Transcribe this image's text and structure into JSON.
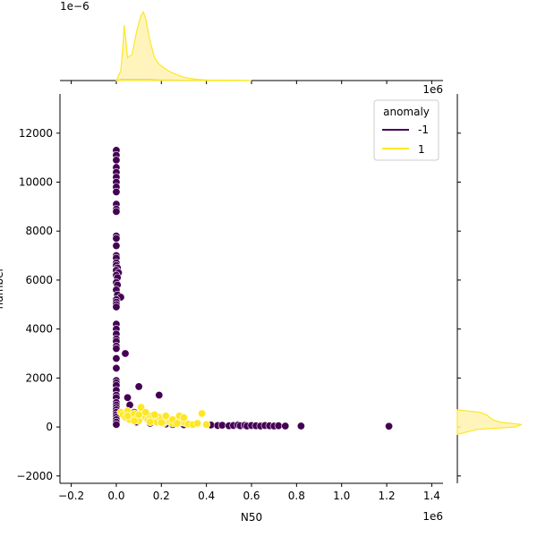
{
  "chart_data": {
    "type": "scatter",
    "xlabel": "N50",
    "ylabel": "number",
    "x_offset_label": "1e6",
    "top_marginal_offset_label": "1e−6",
    "right_marginal_offset_label": "1e6",
    "xlim": [
      -0.25,
      1.45
    ],
    "ylim": [
      -2300,
      13600
    ],
    "x_ticks": [
      -0.2,
      0.0,
      0.2,
      0.4,
      0.6,
      0.8,
      1.0,
      1.2,
      1.4
    ],
    "y_ticks": [
      -2000,
      0,
      2000,
      4000,
      6000,
      8000,
      10000,
      12000
    ],
    "legend": {
      "title": "anomaly",
      "placement": "upper right",
      "entries": [
        {
          "label": "-1",
          "color": "#440154"
        },
        {
          "label": "1",
          "color": "#fde725"
        }
      ]
    },
    "colors": {
      "anomaly_neg": "#440154",
      "anomaly_pos": "#fde725",
      "kde_fill": "#fff3b0",
      "kde_line": "#fde725"
    },
    "series": [
      {
        "name": "-1",
        "color": "#440154",
        "points": [
          [
            0.0,
            11300
          ],
          [
            0.0,
            11100
          ],
          [
            0.0,
            10900
          ],
          [
            0.0,
            10600
          ],
          [
            0.0,
            10400
          ],
          [
            0.0,
            10200
          ],
          [
            0.0,
            10000
          ],
          [
            0.0,
            9800
          ],
          [
            0.0,
            9600
          ],
          [
            0.0,
            9100
          ],
          [
            0.0,
            8900
          ],
          [
            0.0,
            8800
          ],
          [
            0.0,
            7800
          ],
          [
            0.0,
            7700
          ],
          [
            0.0,
            7400
          ],
          [
            0.0,
            7000
          ],
          [
            0.0,
            6900
          ],
          [
            0.0,
            6700
          ],
          [
            0.0,
            6600
          ],
          [
            0.005,
            6500
          ],
          [
            0.0,
            6400
          ],
          [
            0.01,
            6300
          ],
          [
            0.0,
            6200
          ],
          [
            0.005,
            6100
          ],
          [
            0.0,
            5900
          ],
          [
            0.005,
            5800
          ],
          [
            0.0,
            5600
          ],
          [
            0.005,
            5400
          ],
          [
            0.02,
            5300
          ],
          [
            0.0,
            5200
          ],
          [
            0.0,
            5100
          ],
          [
            0.0,
            5000
          ],
          [
            0.0,
            4900
          ],
          [
            0.0,
            4200
          ],
          [
            0.0,
            4000
          ],
          [
            0.0,
            3800
          ],
          [
            0.0,
            3600
          ],
          [
            0.0,
            3500
          ],
          [
            0.0,
            3300
          ],
          [
            0.0,
            3200
          ],
          [
            0.04,
            3000
          ],
          [
            0.0,
            2800
          ],
          [
            0.0,
            2400
          ],
          [
            0.0,
            1900
          ],
          [
            0.0,
            1800
          ],
          [
            0.0,
            1700
          ],
          [
            0.0,
            1500
          ],
          [
            0.0,
            1300
          ],
          [
            0.0,
            1200
          ],
          [
            0.0,
            1000
          ],
          [
            0.0,
            900
          ],
          [
            0.0,
            800
          ],
          [
            0.0,
            700
          ],
          [
            0.0,
            600
          ],
          [
            0.0,
            500
          ],
          [
            0.0,
            400
          ],
          [
            0.0,
            300
          ],
          [
            0.0,
            200
          ],
          [
            0.0,
            100
          ],
          [
            0.05,
            1200
          ],
          [
            0.06,
            900
          ],
          [
            0.1,
            1650
          ],
          [
            0.08,
            600
          ],
          [
            0.12,
            500
          ],
          [
            0.19,
            1300
          ],
          [
            0.06,
            300
          ],
          [
            0.09,
            200
          ],
          [
            0.15,
            150
          ],
          [
            0.22,
            120
          ],
          [
            0.25,
            100
          ],
          [
            0.3,
            90
          ],
          [
            0.42,
            80
          ],
          [
            0.45,
            60
          ],
          [
            0.47,
            70
          ],
          [
            0.5,
            50
          ],
          [
            0.52,
            60
          ],
          [
            0.54,
            80
          ],
          [
            0.55,
            50
          ],
          [
            0.57,
            70
          ],
          [
            0.58,
            40
          ],
          [
            0.6,
            60
          ],
          [
            0.62,
            50
          ],
          [
            0.64,
            40
          ],
          [
            0.66,
            60
          ],
          [
            0.68,
            50
          ],
          [
            0.7,
            40
          ],
          [
            0.72,
            50
          ],
          [
            0.75,
            40
          ],
          [
            0.82,
            40
          ],
          [
            1.21,
            30
          ]
        ]
      },
      {
        "name": "1",
        "color": "#fde725",
        "points": [
          [
            0.02,
            600
          ],
          [
            0.03,
            500
          ],
          [
            0.04,
            400
          ],
          [
            0.05,
            650
          ],
          [
            0.06,
            300
          ],
          [
            0.07,
            450
          ],
          [
            0.08,
            550
          ],
          [
            0.09,
            350
          ],
          [
            0.1,
            250
          ],
          [
            0.11,
            800
          ],
          [
            0.12,
            500
          ],
          [
            0.13,
            400
          ],
          [
            0.14,
            300
          ],
          [
            0.15,
            450
          ],
          [
            0.16,
            350
          ],
          [
            0.17,
            250
          ],
          [
            0.18,
            200
          ],
          [
            0.19,
            400
          ],
          [
            0.2,
            300
          ],
          [
            0.21,
            150
          ],
          [
            0.22,
            250
          ],
          [
            0.23,
            350
          ],
          [
            0.24,
            200
          ],
          [
            0.25,
            150
          ],
          [
            0.26,
            300
          ],
          [
            0.27,
            250
          ],
          [
            0.28,
            450
          ],
          [
            0.29,
            200
          ],
          [
            0.3,
            180
          ],
          [
            0.31,
            150
          ],
          [
            0.32,
            120
          ],
          [
            0.34,
            100
          ],
          [
            0.36,
            150
          ],
          [
            0.38,
            550
          ],
          [
            0.4,
            100
          ],
          [
            0.05,
            450
          ],
          [
            0.08,
            250
          ],
          [
            0.1,
            500
          ],
          [
            0.13,
            600
          ],
          [
            0.15,
            200
          ],
          [
            0.17,
            500
          ],
          [
            0.2,
            180
          ],
          [
            0.22,
            450
          ],
          [
            0.25,
            300
          ],
          [
            0.27,
            150
          ],
          [
            0.3,
            380
          ]
        ]
      }
    ],
    "top_marginal": {
      "type": "kde",
      "x": [
        0.0,
        0.02,
        0.03,
        0.035,
        0.04,
        0.05,
        0.07,
        0.09,
        0.11,
        0.12,
        0.13,
        0.15,
        0.17,
        0.19,
        0.21,
        0.23,
        0.26,
        0.3,
        0.35,
        0.4,
        0.5,
        0.6
      ],
      "pos_density": [
        0.0,
        0.15,
        0.55,
        0.85,
        0.7,
        0.35,
        0.4,
        0.75,
        1.0,
        1.05,
        0.95,
        0.6,
        0.35,
        0.25,
        0.2,
        0.15,
        0.1,
        0.05,
        0.02,
        0.01,
        0.005,
        0.0
      ],
      "neg_density": [
        0.0,
        0.02,
        0.02,
        0.02,
        0.02,
        0.02,
        0.02,
        0.02,
        0.02,
        0.02,
        0.02,
        0.02,
        0.015,
        0.01,
        0.01,
        0.01,
        0.008,
        0.006,
        0.005,
        0.004,
        0.002,
        0.0
      ]
    },
    "right_marginal": {
      "type": "kde",
      "y": [
        -300,
        -100,
        0,
        100,
        200,
        300,
        400,
        500,
        600,
        700
      ],
      "pos_density": [
        0.0,
        0.3,
        0.9,
        1.0,
        0.65,
        0.55,
        0.5,
        0.45,
        0.35,
        0.0
      ]
    }
  }
}
